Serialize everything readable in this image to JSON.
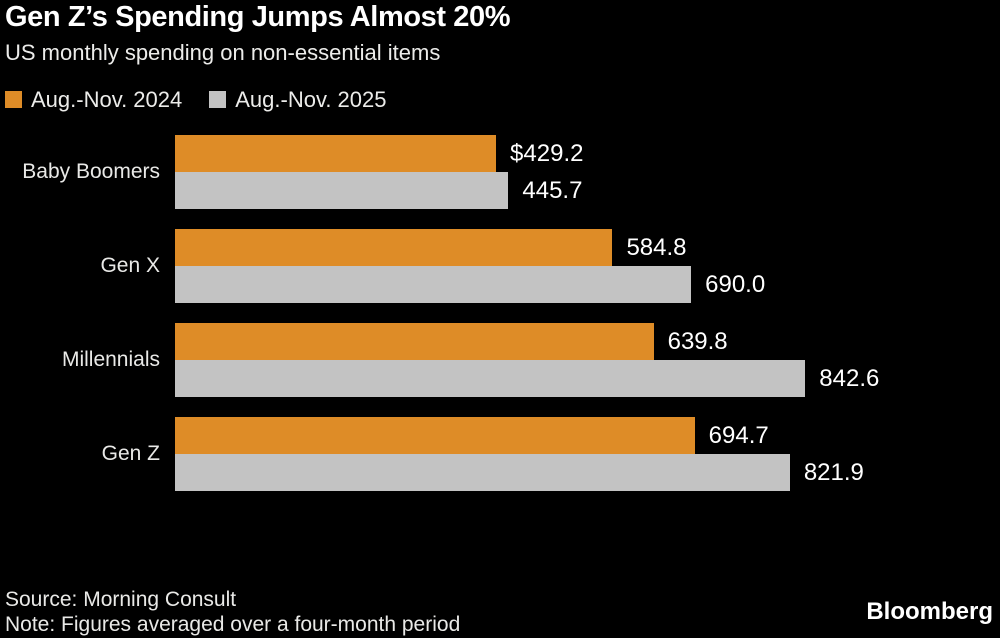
{
  "header": {
    "title": "Gen Z’s Spending Jumps Almost 20%",
    "subtitle": "US monthly spending on non-essential items"
  },
  "legend": [
    {
      "label": "Aug.-Nov. 2024",
      "color": "#DE8C27"
    },
    {
      "label": "Aug.-Nov. 2025",
      "color": "#C3C3C3"
    }
  ],
  "chart_data": {
    "type": "bar",
    "orientation": "horizontal",
    "title": "Gen Z’s Spending Jumps Almost 20%",
    "subtitle": "US monthly spending on non-essential items",
    "xlabel": "",
    "ylabel": "",
    "xlim": [
      0,
      842.6
    ],
    "grid": false,
    "legend_position": "top-left",
    "categories": [
      "Baby Boomers",
      "Gen X",
      "Millennials",
      "Gen Z"
    ],
    "series": [
      {
        "name": "Aug.-Nov. 2024",
        "color": "#DE8C27",
        "values": [
          429.2,
          584.8,
          639.8,
          694.7
        ],
        "labels": [
          "$429.2",
          "584.8",
          "639.8",
          "694.7"
        ]
      },
      {
        "name": "Aug.-Nov. 2025",
        "color": "#C3C3C3",
        "values": [
          445.7,
          690.0,
          842.6,
          821.9
        ],
        "labels": [
          "445.7",
          "690.0",
          "842.6",
          "821.9"
        ]
      }
    ]
  },
  "footer": {
    "source": "Source: Morning Consult",
    "note": "Note: Figures averaged over a four-month period",
    "brand": "Bloomberg"
  }
}
